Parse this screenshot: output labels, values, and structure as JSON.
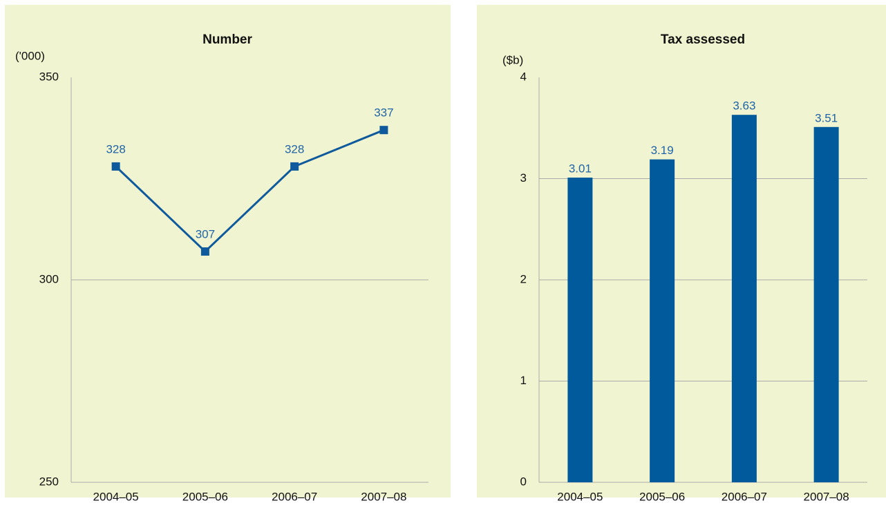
{
  "chart_data": [
    {
      "type": "line",
      "title": "Number",
      "y_label": "('000)",
      "categories": [
        "2004–05",
        "2005–06",
        "2006–07",
        "2007–08"
      ],
      "values": [
        328,
        307,
        328,
        337
      ],
      "color": "#0f5a9c",
      "ylim": [
        250,
        350
      ],
      "yticks": [
        250,
        300,
        350
      ],
      "grid": true
    },
    {
      "type": "bar",
      "title": "Tax assessed",
      "y_label": "($b)",
      "categories": [
        "2004–05",
        "2005–06",
        "2006–07",
        "2007–08"
      ],
      "values": [
        3.01,
        3.19,
        3.63,
        3.51
      ],
      "color": "#005a9c",
      "ylim": [
        0,
        4
      ],
      "yticks": [
        0,
        1,
        2,
        3,
        4
      ],
      "grid": true
    }
  ]
}
